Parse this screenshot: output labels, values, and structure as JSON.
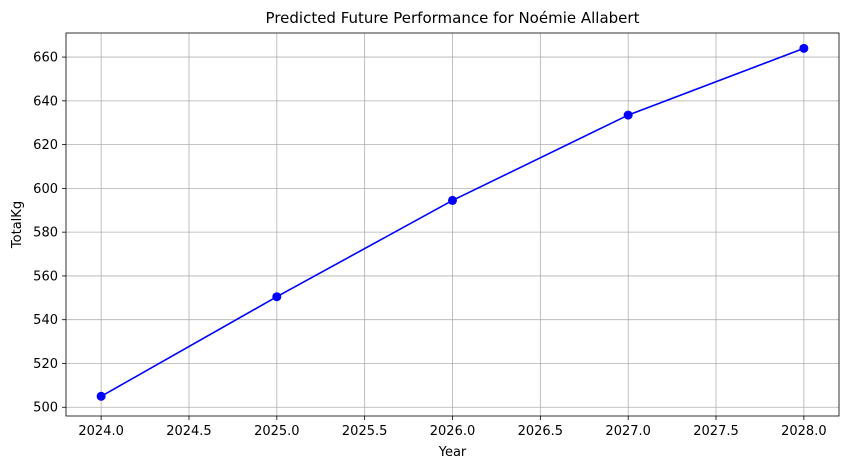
{
  "chart_data": {
    "type": "line",
    "title": "Predicted Future Performance for Noémie Allabert",
    "xlabel": "Year",
    "ylabel": "TotalKg",
    "x": [
      2024,
      2025,
      2026,
      2027,
      2028
    ],
    "series": [
      {
        "values": [
          505,
          550.5,
          594.5,
          633.5,
          664
        ],
        "color": "#0000ff",
        "marker": "circle"
      }
    ],
    "xlim": [
      2023.8,
      2028.2
    ],
    "ylim": [
      496,
      671
    ],
    "xticks": [
      "2024.0",
      "2024.5",
      "2025.0",
      "2025.5",
      "2026.0",
      "2026.5",
      "2027.0",
      "2027.5",
      "2028.0"
    ],
    "yticks": [
      "500",
      "520",
      "540",
      "560",
      "580",
      "600",
      "620",
      "640",
      "660"
    ],
    "grid": true,
    "legend": "none"
  }
}
